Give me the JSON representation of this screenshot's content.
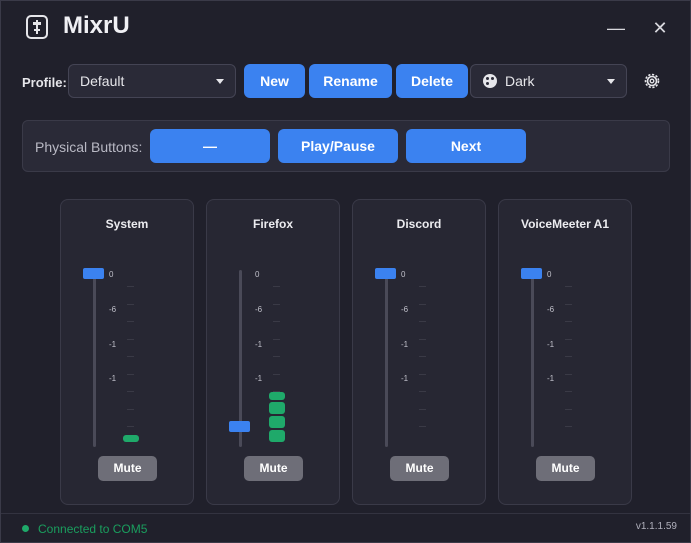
{
  "app": {
    "title": "MixrU",
    "icon": "slider-app-icon"
  },
  "window_controls": {
    "minimize": "—",
    "close": "✕"
  },
  "profile": {
    "label": "Profile:",
    "selected": "Default",
    "buttons": {
      "new": "New",
      "rename": "Rename",
      "delete": "Delete"
    }
  },
  "theme": {
    "selected": "Dark",
    "icon": "palette-icon"
  },
  "settings": {
    "icon": "gear-icon"
  },
  "physical_buttons": {
    "label": "Physical Buttons:",
    "buttons": [
      "—",
      "Play/Pause",
      "Next"
    ]
  },
  "scale_labels": [
    "0",
    "-6",
    "-1",
    "-1"
  ],
  "channels": [
    {
      "name": "System",
      "volume_level": 1.0,
      "meter_level": 0.05,
      "mute_label": "Mute"
    },
    {
      "name": "Firefox",
      "volume_level": 0.08,
      "meter_level": 0.32,
      "mute_label": "Mute"
    },
    {
      "name": "Discord",
      "volume_level": 1.0,
      "meter_level": 0.0,
      "mute_label": "Mute"
    },
    {
      "name": "VoiceMeeter A1",
      "volume_level": 1.0,
      "meter_level": 0.0,
      "mute_label": "Mute"
    }
  ],
  "status": {
    "text": "Connected to COM5",
    "color": "#1fa96a"
  },
  "version": "v1.1.1.59",
  "colors": {
    "accent": "#3b82f0",
    "meter": "#1fa96a",
    "background": "#20202b"
  }
}
